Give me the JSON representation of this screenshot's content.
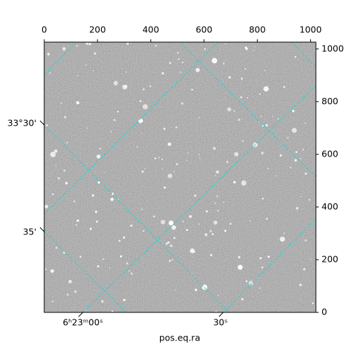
{
  "chart_data": {
    "type": "image",
    "x_label": "pos.eq.ra",
    "xlim": [
      0,
      1020
    ],
    "ylim": [
      0,
      1026
    ],
    "xticks": [
      0,
      200,
      400,
      600,
      800,
      1000
    ],
    "yticks": [
      0,
      200,
      400,
      600,
      800,
      1000
    ],
    "ra_tick_labels": [
      "6ʰ23ᵐ00ˢ",
      "30ˢ"
    ],
    "dec_tick_labels": [
      "33°30'",
      "35'"
    ],
    "grid_color": "#22d3d3"
  }
}
